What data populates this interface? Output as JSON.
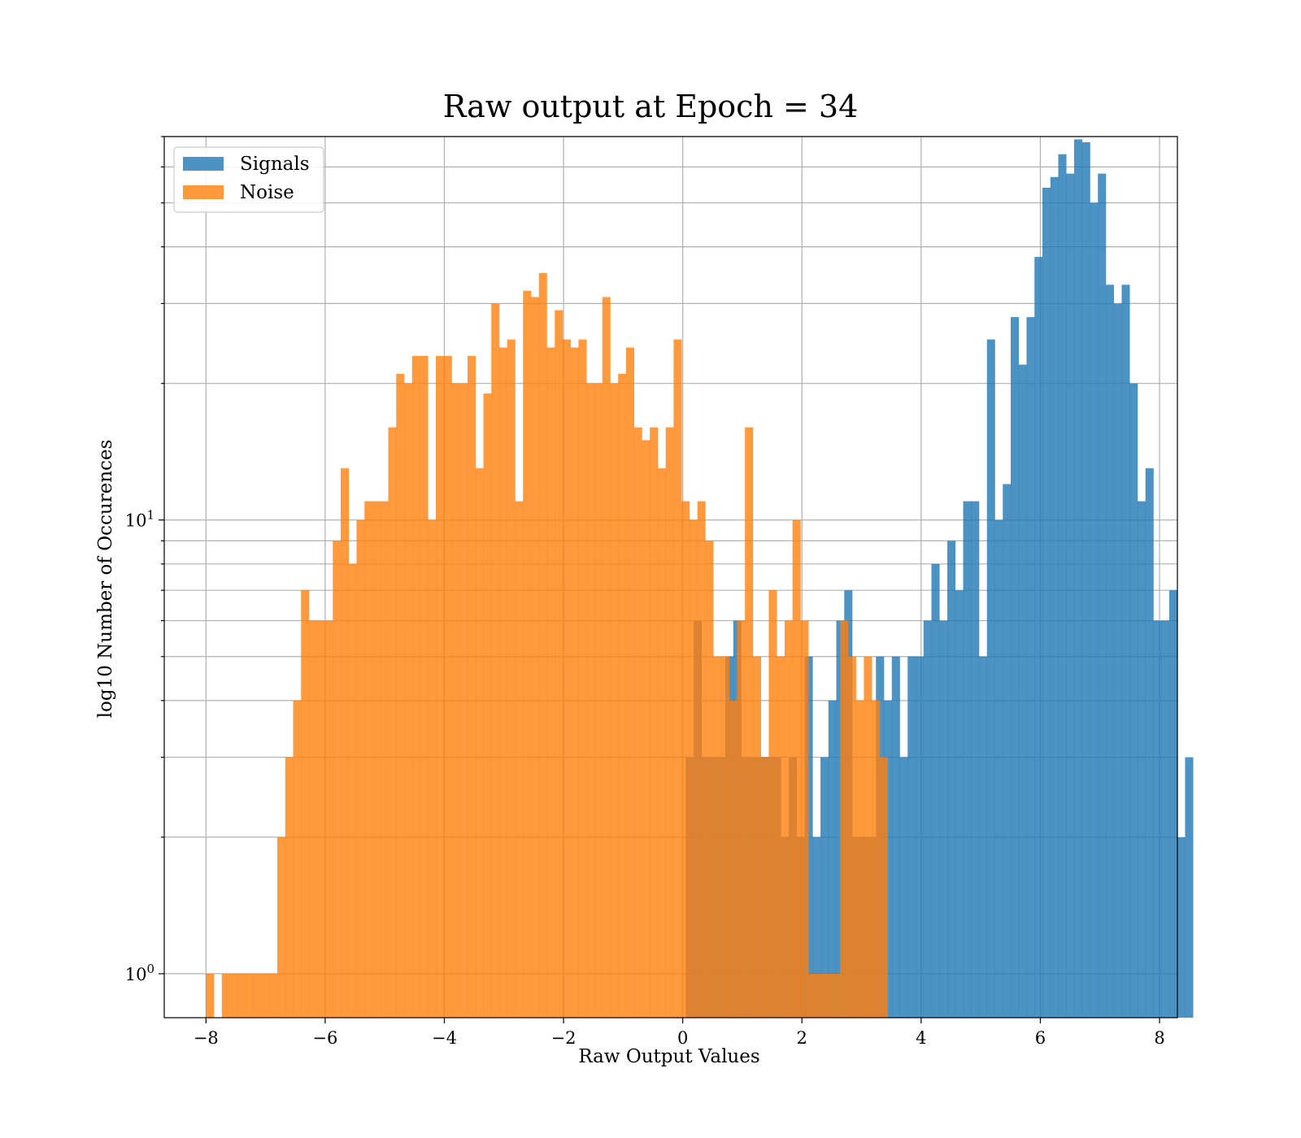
{
  "chart_data": {
    "type": "bar",
    "title": "Raw output at Epoch = 34",
    "xlabel": "Raw Output Values",
    "ylabel": "log10 Number of Occurences",
    "xlim": [
      -8.7,
      8.3
    ],
    "ylim": [
      0.8,
      70
    ],
    "yscale": "log",
    "grid": true,
    "legend": "top-left",
    "xticks": [
      -8,
      -6,
      -4,
      -2,
      0,
      2,
      4,
      6,
      8
    ],
    "xtick_labels": [
      "−8",
      "−6",
      "−4",
      "−2",
      "0",
      "2",
      "4",
      "6",
      "8"
    ],
    "ytick_labels": [
      {
        "base": "10",
        "exp": "1"
      },
      {
        "base": "10",
        "exp": "0"
      }
    ],
    "ytick_values": [
      10,
      1
    ],
    "series": [
      {
        "name": "Signals",
        "color": "#1f77b4",
        "start": 0.05,
        "width": 0.133,
        "counts": [
          3,
          6,
          3,
          3,
          3,
          5,
          6,
          3,
          3,
          3,
          3,
          3,
          2,
          3,
          2,
          5,
          2,
          3,
          4,
          6,
          7,
          2,
          2,
          2,
          5,
          4,
          5,
          3,
          5,
          5,
          6,
          8,
          6,
          9,
          7,
          11,
          11,
          5,
          25,
          10,
          12,
          28,
          22,
          28,
          38,
          54,
          57,
          64,
          58,
          69,
          68,
          50,
          58,
          33,
          30,
          33,
          20,
          11,
          13,
          6,
          6,
          7,
          2,
          3
        ],
        "alpha": 0.8
      },
      {
        "name": "Noise",
        "color": "#ff7f0e",
        "start": -8.0,
        "width": 0.133,
        "counts": [
          1,
          0,
          1,
          1,
          1,
          1,
          1,
          1,
          1,
          2,
          3,
          4,
          7,
          6,
          6,
          6,
          9,
          13,
          8,
          10,
          11,
          11,
          11,
          16,
          21,
          20,
          23,
          23,
          10,
          23,
          23,
          20,
          20,
          23,
          13,
          19,
          30,
          24,
          25,
          11,
          32,
          31,
          35,
          24,
          29,
          25,
          24,
          25,
          20,
          20,
          31,
          20,
          21,
          24,
          16,
          15,
          16,
          13,
          16,
          25,
          11,
          10,
          11,
          9,
          5,
          5,
          4,
          6,
          16,
          5,
          3,
          7,
          5,
          6,
          10,
          6,
          1,
          1,
          1,
          1,
          6,
          5,
          4,
          5,
          4,
          3
        ],
        "alpha": 0.8
      }
    ]
  }
}
